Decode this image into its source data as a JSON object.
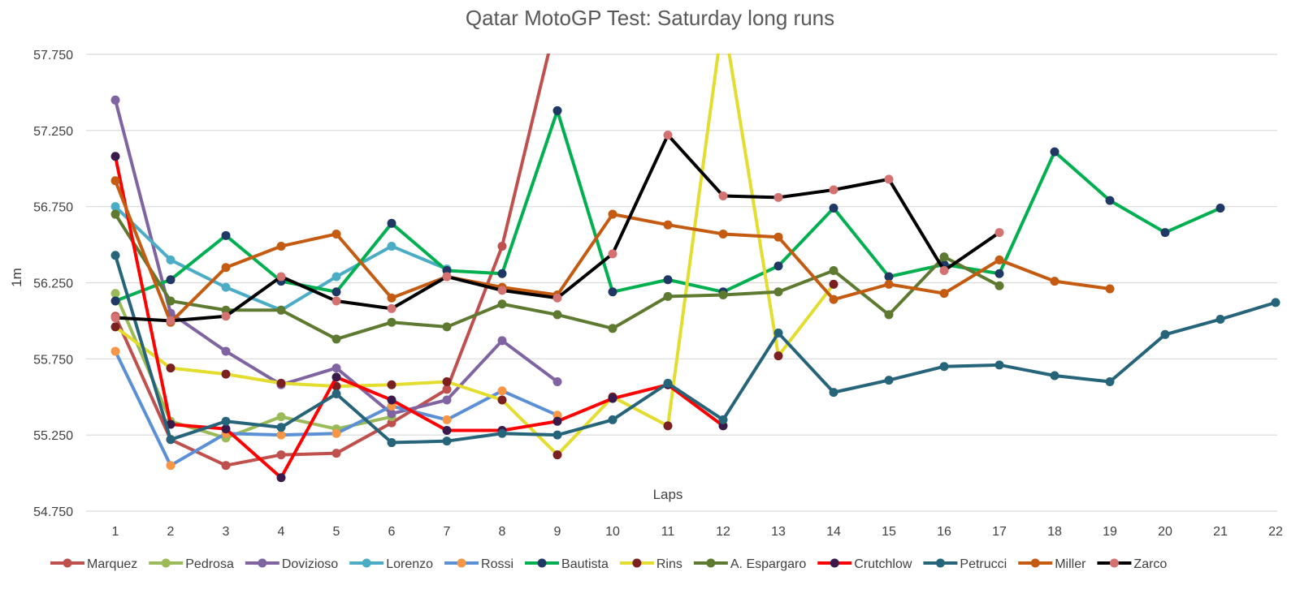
{
  "chart_data": {
    "type": "line",
    "title": "Qatar MotoGP Test: Saturday long runs",
    "xlabel": "Laps",
    "ylabel": "1m",
    "x": [
      1,
      2,
      3,
      4,
      5,
      6,
      7,
      8,
      9,
      10,
      11,
      12,
      13,
      14,
      15,
      16,
      17,
      18,
      19,
      20,
      21,
      22
    ],
    "ylim": [
      54.75,
      57.75
    ],
    "yticks": [
      54.75,
      55.25,
      55.75,
      56.25,
      56.75,
      57.25,
      57.75
    ],
    "yticklabels": [
      "54.750",
      "55.250",
      "55.750",
      "56.250",
      "56.750",
      "57.250",
      "57.750"
    ],
    "grid": "horizontal",
    "legend_position": "bottom",
    "series": [
      {
        "name": "Marquez",
        "color": "#c0504d",
        "marker": "#c0504d",
        "values": [
          56.03,
          55.22,
          55.05,
          55.12,
          55.13,
          55.33,
          55.55,
          56.49,
          58.0,
          58.0,
          null,
          null,
          null,
          null,
          null,
          null,
          null,
          null,
          null,
          null,
          null,
          null
        ]
      },
      {
        "name": "Pedrosa",
        "color": "#9bbb59",
        "marker": "#9bbb59",
        "values": [
          56.18,
          55.34,
          55.23,
          55.37,
          55.29,
          55.37,
          null,
          null,
          null,
          null,
          null,
          null,
          null,
          null,
          null,
          null,
          null,
          null,
          null,
          null,
          null,
          null
        ]
      },
      {
        "name": "Dovizioso",
        "color": "#8064a2",
        "marker": "#8064a2",
        "values": [
          57.45,
          56.05,
          55.8,
          55.58,
          55.69,
          55.39,
          55.48,
          55.87,
          55.6,
          null,
          null,
          null,
          null,
          null,
          null,
          null,
          null,
          null,
          null,
          null,
          null,
          null
        ]
      },
      {
        "name": "Lorenzo",
        "color": "#4bacc6",
        "marker": "#4bacc6",
        "values": [
          56.75,
          56.4,
          56.22,
          56.07,
          56.29,
          56.49,
          56.34,
          null,
          null,
          null,
          null,
          null,
          null,
          null,
          null,
          null,
          null,
          null,
          null,
          null,
          null,
          null
        ]
      },
      {
        "name": "Rossi",
        "color": "#5b8fd6",
        "marker": "#f79646",
        "values": [
          55.8,
          55.05,
          55.26,
          55.25,
          55.26,
          55.44,
          55.35,
          55.54,
          55.38,
          null,
          null,
          null,
          null,
          null,
          null,
          null,
          null,
          null,
          null,
          null,
          null,
          null
        ]
      },
      {
        "name": "Bautista",
        "color": "#00b050",
        "marker": "#1f3864",
        "values": [
          56.13,
          56.27,
          56.56,
          56.26,
          56.19,
          56.64,
          56.33,
          56.31,
          57.38,
          56.19,
          56.27,
          56.19,
          56.36,
          56.74,
          56.29,
          56.37,
          56.31,
          57.11,
          56.79,
          56.58,
          56.74,
          null
        ]
      },
      {
        "name": "Rins",
        "color": "#e3dd2f",
        "marker": "#7b2020",
        "values": [
          55.96,
          55.69,
          55.65,
          55.59,
          55.57,
          55.58,
          55.6,
          55.48,
          55.12,
          55.5,
          55.31,
          58.0,
          55.77,
          56.24,
          null,
          null,
          null,
          null,
          null,
          null,
          null,
          null
        ]
      },
      {
        "name": "A. Espargaro",
        "color": "#5e7a30",
        "marker": "#5e7a30",
        "values": [
          56.7,
          56.13,
          56.07,
          56.07,
          55.88,
          55.99,
          55.96,
          56.11,
          56.04,
          55.95,
          56.16,
          56.17,
          56.19,
          56.33,
          56.04,
          56.42,
          56.23,
          null,
          null,
          null,
          null,
          null
        ]
      },
      {
        "name": "Crutchlow",
        "color": "#ff0000",
        "marker": "#3a1a4a",
        "values": [
          57.08,
          55.32,
          55.29,
          54.97,
          55.63,
          55.48,
          55.28,
          55.28,
          55.34,
          55.49,
          55.58,
          55.31,
          null,
          null,
          null,
          null,
          null,
          null,
          null,
          null,
          null,
          null
        ]
      },
      {
        "name": "Petrucci",
        "color": "#26647a",
        "marker": "#26647a",
        "values": [
          56.43,
          55.22,
          55.34,
          55.3,
          55.52,
          55.2,
          55.21,
          55.26,
          55.25,
          55.35,
          55.59,
          55.35,
          55.92,
          55.53,
          55.61,
          55.7,
          55.71,
          55.64,
          55.6,
          55.91,
          56.01,
          56.12
        ]
      },
      {
        "name": "Miller",
        "color": "#c55a11",
        "marker": "#c55a11",
        "values": [
          56.92,
          55.99,
          56.35,
          56.49,
          56.57,
          56.15,
          56.29,
          56.22,
          56.17,
          56.7,
          56.63,
          56.57,
          56.55,
          56.14,
          56.24,
          56.18,
          56.4,
          56.26,
          56.21,
          null,
          null,
          null
        ]
      },
      {
        "name": "Zarco",
        "color": "#000000",
        "marker": "#d47272",
        "values": [
          56.02,
          56.0,
          56.03,
          56.29,
          56.13,
          56.08,
          56.29,
          56.2,
          56.15,
          56.44,
          57.22,
          56.82,
          56.81,
          56.86,
          56.93,
          56.33,
          56.58,
          null,
          null,
          null,
          null,
          null
        ]
      }
    ]
  }
}
